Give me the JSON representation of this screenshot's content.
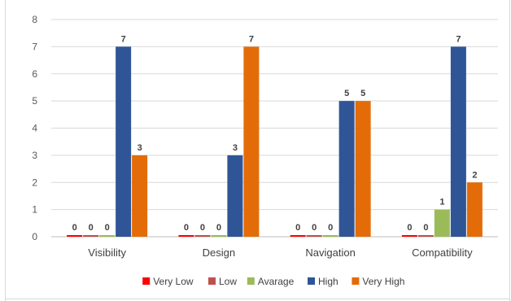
{
  "chart_data": {
    "type": "bar",
    "title": "",
    "xlabel": "",
    "ylabel": "",
    "categories": [
      "Visibility",
      "Design",
      "Navigation",
      "Compatibility"
    ],
    "series": [
      {
        "name": "Very Low",
        "color": "#ff0000",
        "values": [
          0,
          0,
          0,
          0
        ]
      },
      {
        "name": "Low",
        "color": "#c0504d",
        "values": [
          0,
          0,
          0,
          0
        ]
      },
      {
        "name": "Avarage",
        "color": "#9bbb59",
        "values": [
          0,
          0,
          0,
          1
        ]
      },
      {
        "name": "High",
        "color": "#2f5597",
        "values": [
          7,
          3,
          5,
          7
        ]
      },
      {
        "name": "Very High",
        "color": "#e36c09",
        "values": [
          3,
          7,
          5,
          2
        ]
      }
    ],
    "ylim": [
      0,
      8
    ],
    "yticks": [
      0,
      1,
      2,
      3,
      4,
      5,
      6,
      7,
      8
    ],
    "grid": true,
    "legend_position": "bottom",
    "data_labels": true
  }
}
